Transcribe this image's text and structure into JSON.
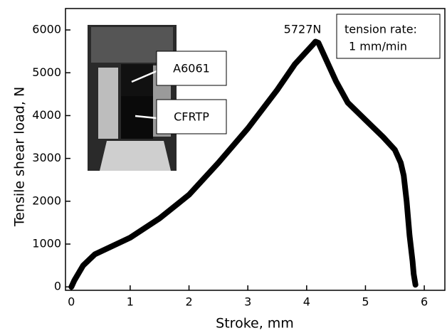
{
  "chart_data": {
    "type": "line",
    "x_label": "Stroke, mm",
    "y_label": "Tensile shear load, N",
    "peak_label": "5727N",
    "note_lines": [
      "tension rate:",
      "1 mm/min"
    ],
    "inset_labels": [
      "A6061",
      "CFRTP"
    ],
    "color": "#000000",
    "x": [
      0,
      0.05,
      0.2,
      0.4,
      1,
      1.5,
      2,
      2.5,
      3,
      3.5,
      3.8,
      4.0,
      4.1,
      4.15,
      4.2,
      4.3,
      4.5,
      4.7,
      5,
      5.3,
      5.5,
      5.6,
      5.65,
      5.7,
      5.75,
      5.8,
      5.82,
      5.85
    ],
    "values": [
      0,
      150,
      500,
      760,
      1150,
      1600,
      2150,
      2900,
      3700,
      4600,
      5200,
      5500,
      5650,
      5727,
      5700,
      5400,
      4800,
      4300,
      3900,
      3500,
      3200,
      2900,
      2600,
      2000,
      1200,
      600,
      300,
      50
    ],
    "xlim": [
      -0.1,
      6.35
    ],
    "ylim": [
      -80,
      6500
    ],
    "xticks": [
      0,
      1,
      2,
      3,
      4,
      5,
      6
    ],
    "yticks": [
      0,
      1000,
      2000,
      3000,
      4000,
      5000,
      6000
    ]
  }
}
